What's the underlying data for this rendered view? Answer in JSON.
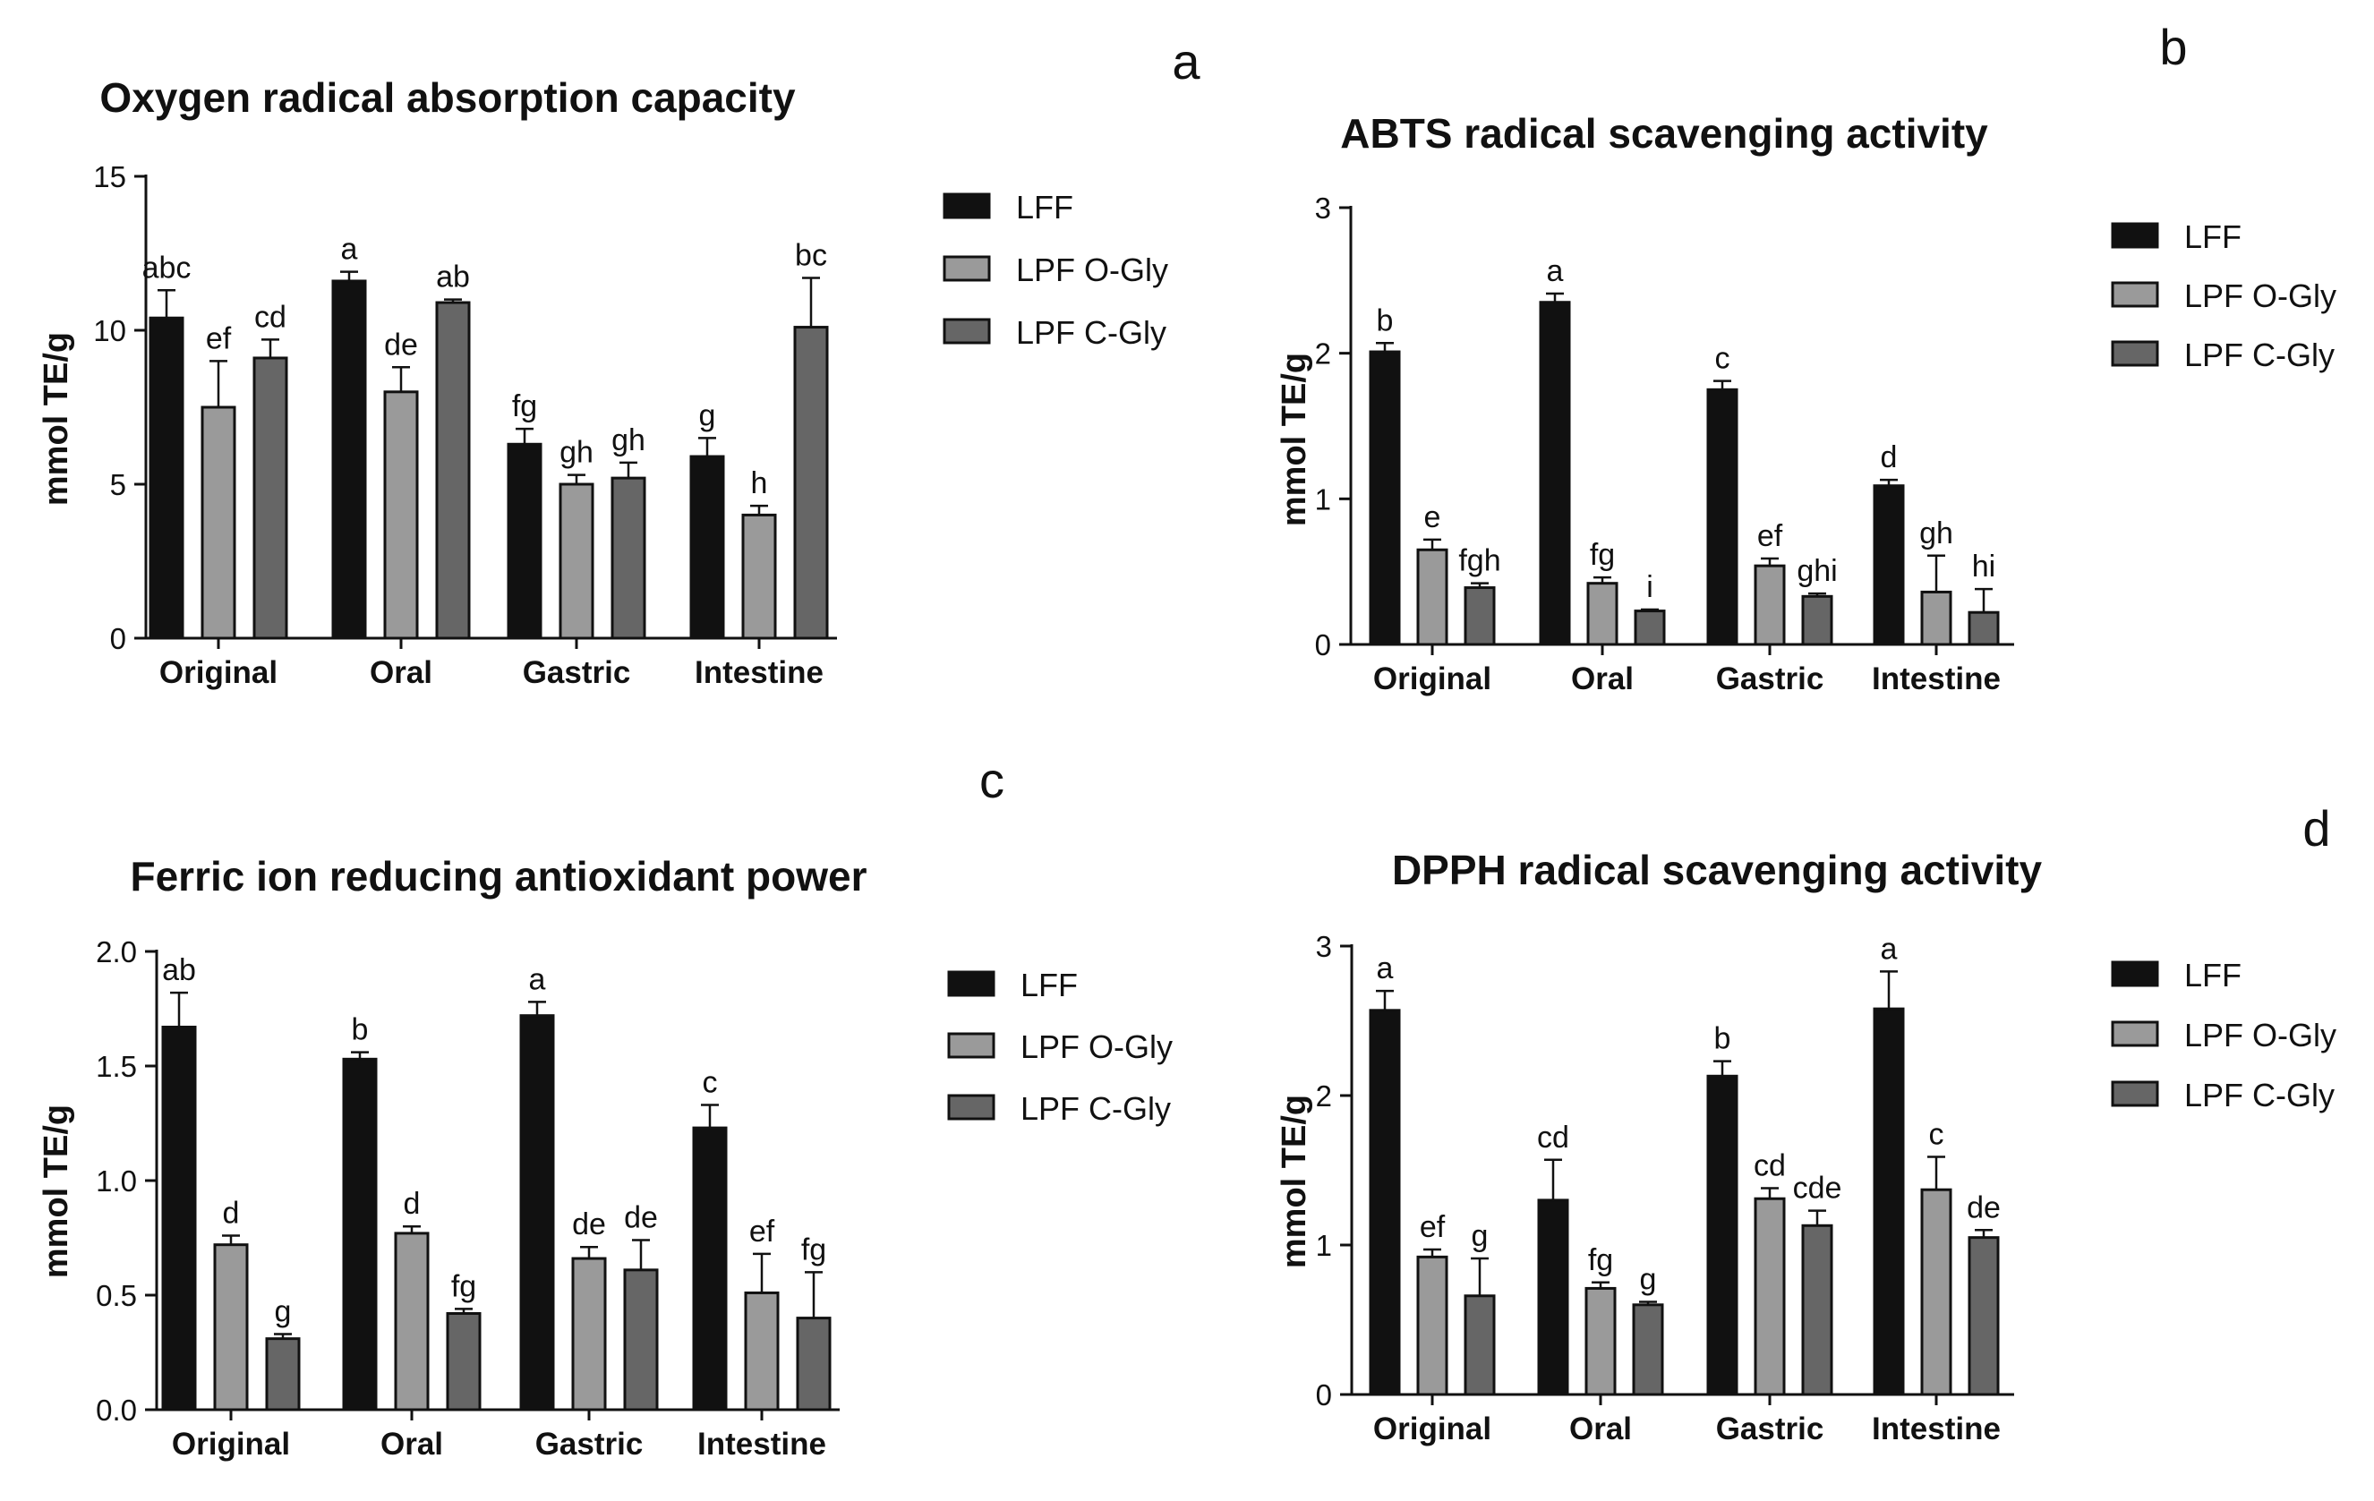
{
  "legend": [
    "LFF",
    "LPF O-Gly",
    "LPF C-Gly"
  ],
  "colors": {
    "LFF": "#111111",
    "LPF O-Gly": "#9a9a9a",
    "LPF C-Gly": "#666666"
  },
  "chart_data": [
    {
      "panel": "a",
      "type": "bar",
      "title": "Oxygen radical absorption capacity",
      "xlabel": "",
      "ylabel": "mmol TE/g",
      "ylim": [
        0,
        15
      ],
      "yticks": [
        0,
        5,
        10,
        15
      ],
      "tick_labels": [
        "0",
        "5",
        "10",
        "15"
      ],
      "categories": [
        "Original",
        "Oral",
        "Gastric",
        "Intestine"
      ],
      "series": [
        {
          "name": "LFF",
          "values": [
            10.4,
            11.6,
            6.3,
            5.9
          ],
          "errors": [
            0.9,
            0.3,
            0.5,
            0.6
          ],
          "letters": [
            "abc",
            "a",
            "fg",
            "g"
          ]
        },
        {
          "name": "LPF O-Gly",
          "values": [
            7.5,
            8.0,
            5.0,
            4.0
          ],
          "errors": [
            1.5,
            0.8,
            0.3,
            0.3
          ],
          "letters": [
            "ef",
            "de",
            "gh",
            "h"
          ]
        },
        {
          "name": "LPF C-Gly",
          "values": [
            9.1,
            10.9,
            5.2,
            10.1
          ],
          "errors": [
            0.6,
            0.1,
            0.5,
            1.6
          ],
          "letters": [
            "cd",
            "ab",
            "gh",
            "bc"
          ]
        }
      ]
    },
    {
      "panel": "b",
      "type": "bar",
      "title": "ABTS radical scavenging activity",
      "xlabel": "",
      "ylabel": "mmol TE/g",
      "ylim": [
        0,
        3
      ],
      "yticks": [
        0,
        1,
        2,
        3
      ],
      "tick_labels": [
        "0",
        "1",
        "2",
        "3"
      ],
      "categories": [
        "Original",
        "Oral",
        "Gastric",
        "Intestine"
      ],
      "series": [
        {
          "name": "LFF",
          "values": [
            2.01,
            2.35,
            1.75,
            1.09
          ],
          "errors": [
            0.06,
            0.06,
            0.06,
            0.04
          ],
          "letters": [
            "b",
            "a",
            "c",
            "d"
          ]
        },
        {
          "name": "LPF O-Gly",
          "values": [
            0.65,
            0.42,
            0.54,
            0.36
          ],
          "errors": [
            0.07,
            0.04,
            0.05,
            0.25
          ],
          "letters": [
            "e",
            "fg",
            "ef",
            "gh"
          ]
        },
        {
          "name": "LPF C-Gly",
          "values": [
            0.39,
            0.23,
            0.33,
            0.22
          ],
          "errors": [
            0.03,
            0.01,
            0.02,
            0.16
          ],
          "letters": [
            "fgh",
            "i",
            "ghi",
            "hi"
          ]
        }
      ]
    },
    {
      "panel": "c",
      "type": "bar",
      "title": "Ferric ion reducing antioxidant power",
      "xlabel": "",
      "ylabel": "mmol TE/g",
      "ylim": [
        0,
        2
      ],
      "yticks": [
        0,
        0.5,
        1,
        1.5,
        2
      ],
      "tick_labels": [
        "0.0",
        "0.5",
        "1.0",
        "1.5",
        "2.0"
      ],
      "categories": [
        "Original",
        "Oral",
        "Gastric",
        "Intestine"
      ],
      "series": [
        {
          "name": "LFF",
          "values": [
            1.67,
            1.53,
            1.72,
            1.23
          ],
          "errors": [
            0.15,
            0.03,
            0.06,
            0.1
          ],
          "letters": [
            "ab",
            "b",
            "a",
            "c"
          ]
        },
        {
          "name": "LPF O-Gly",
          "values": [
            0.72,
            0.77,
            0.66,
            0.51
          ],
          "errors": [
            0.04,
            0.03,
            0.05,
            0.17
          ],
          "letters": [
            "d",
            "d",
            "de",
            "ef"
          ]
        },
        {
          "name": "LPF C-Gly",
          "values": [
            0.31,
            0.42,
            0.61,
            0.4
          ],
          "errors": [
            0.02,
            0.02,
            0.13,
            0.2
          ],
          "letters": [
            "g",
            "fg",
            "de",
            "fg"
          ]
        }
      ]
    },
    {
      "panel": "d",
      "type": "bar",
      "title": "DPPH radical scavenging activity",
      "xlabel": "",
      "ylabel": "mmol TE/g",
      "ylim": [
        0,
        3
      ],
      "yticks": [
        0,
        1,
        2,
        3
      ],
      "tick_labels": [
        "0",
        "1",
        "2",
        "3"
      ],
      "categories": [
        "Original",
        "Oral",
        "Gastric",
        "Intestine"
      ],
      "series": [
        {
          "name": "LFF",
          "values": [
            2.57,
            1.3,
            2.13,
            2.58
          ],
          "errors": [
            0.13,
            0.27,
            0.1,
            0.25
          ],
          "letters": [
            "a",
            "cd",
            "b",
            "a"
          ]
        },
        {
          "name": "LPF O-Gly",
          "values": [
            0.92,
            0.71,
            1.31,
            1.37
          ],
          "errors": [
            0.05,
            0.04,
            0.07,
            0.22
          ],
          "letters": [
            "ef",
            "fg",
            "cd",
            "c"
          ]
        },
        {
          "name": "LPF C-Gly",
          "values": [
            0.66,
            0.6,
            1.13,
            1.05
          ],
          "errors": [
            0.25,
            0.02,
            0.1,
            0.05
          ],
          "letters": [
            "g",
            "g",
            "cde",
            "de"
          ]
        }
      ]
    }
  ]
}
